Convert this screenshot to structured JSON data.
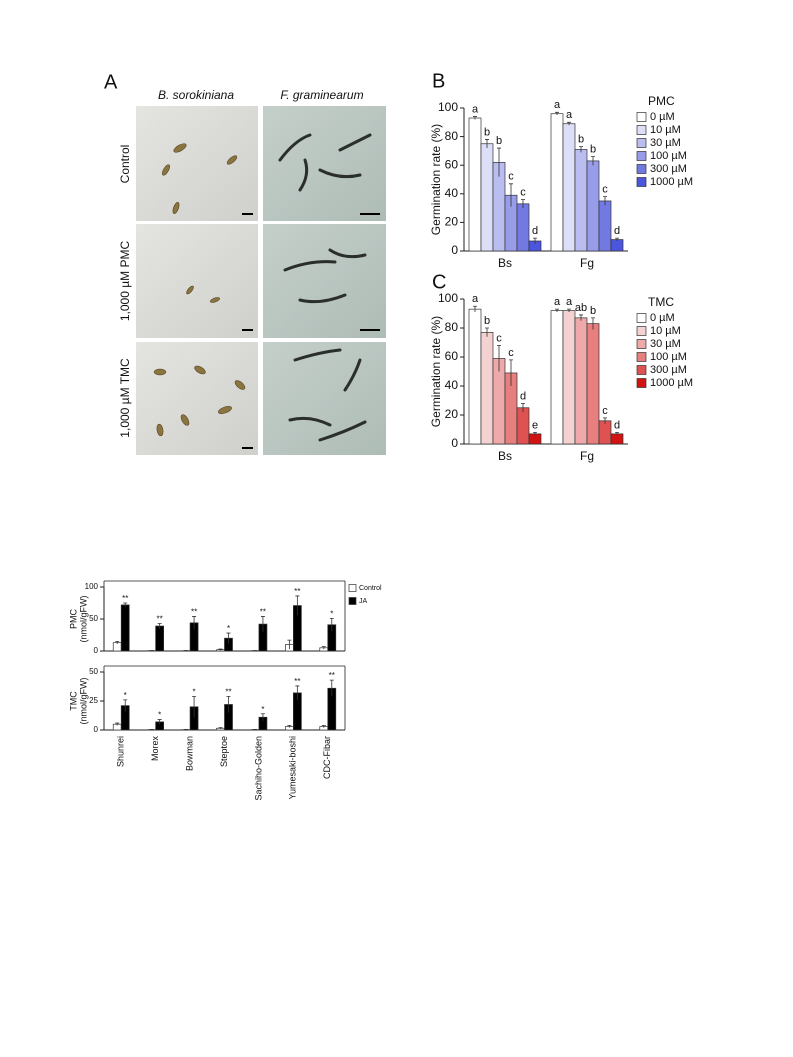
{
  "panel_a": {
    "label": "A",
    "columns": [
      "B. sorokiniana",
      "F. graminearum"
    ],
    "rows": [
      "Control",
      "1,000 µM PMC",
      "1,000 µM TMC"
    ]
  },
  "chart_data": [
    {
      "type": "bar",
      "label": "B",
      "ylabel": "Germination rate (%)",
      "legend_title": "PMC",
      "categories": [
        "Bs",
        "Fg"
      ],
      "ylim": [
        0,
        100
      ],
      "yticks": [
        0,
        20,
        40,
        60,
        80,
        100
      ],
      "series": [
        {
          "name": "0 µM",
          "color": "#ffffff",
          "values": [
            93,
            96
          ],
          "errors": [
            1,
            1
          ],
          "letters": [
            "a",
            "a"
          ]
        },
        {
          "name": "10 µM",
          "color": "#dcdff7",
          "values": [
            75,
            89
          ],
          "errors": [
            3,
            1
          ],
          "letters": [
            "b",
            "a"
          ]
        },
        {
          "name": "30 µM",
          "color": "#b9bdf0",
          "values": [
            62,
            71
          ],
          "errors": [
            10,
            2
          ],
          "letters": [
            "b",
            "b"
          ]
        },
        {
          "name": "100 µM",
          "color": "#979de9",
          "values": [
            39,
            63
          ],
          "errors": [
            8,
            3
          ],
          "letters": [
            "c",
            "b"
          ]
        },
        {
          "name": "300 µM",
          "color": "#7279e2",
          "values": [
            33,
            35
          ],
          "errors": [
            3,
            3
          ],
          "letters": [
            "c",
            "c"
          ]
        },
        {
          "name": "1000 µM",
          "color": "#4c55dd",
          "values": [
            7,
            8
          ],
          "errors": [
            2,
            1
          ],
          "letters": [
            "d",
            "d"
          ]
        }
      ]
    },
    {
      "type": "bar",
      "label": "C",
      "ylabel": "Germination rate (%)",
      "legend_title": "TMC",
      "categories": [
        "Bs",
        "Fg"
      ],
      "ylim": [
        0,
        100
      ],
      "yticks": [
        0,
        20,
        40,
        60,
        80,
        100
      ],
      "series": [
        {
          "name": "0 µM",
          "color": "#ffffff",
          "values": [
            93,
            92
          ],
          "errors": [
            2,
            1
          ],
          "letters": [
            "a",
            "a"
          ]
        },
        {
          "name": "10 µM",
          "color": "#f5d2d2",
          "values": [
            77,
            92
          ],
          "errors": [
            3,
            1
          ],
          "letters": [
            "b",
            "a"
          ]
        },
        {
          "name": "30 µM",
          "color": "#eeaaaa",
          "values": [
            59,
            87
          ],
          "errors": [
            9,
            2
          ],
          "letters": [
            "c",
            "ab"
          ]
        },
        {
          "name": "100 µM",
          "color": "#e77f7f",
          "values": [
            49,
            83
          ],
          "errors": [
            9,
            4
          ],
          "letters": [
            "c",
            "b"
          ]
        },
        {
          "name": "300 µM",
          "color": "#df5252",
          "values": [
            25,
            16
          ],
          "errors": [
            3,
            2
          ],
          "letters": [
            "d",
            "c"
          ]
        },
        {
          "name": "1000 µM",
          "color": "#d31212",
          "values": [
            7,
            7
          ],
          "errors": [
            1,
            1
          ],
          "letters": [
            "e",
            "d"
          ]
        }
      ]
    },
    {
      "type": "bar",
      "categories": [
        "Shunrei",
        "Morex",
        "Bowman",
        "Steptoe",
        "Sachiho-Golden",
        "Yumesaki-boshi",
        "CDC-Fibar"
      ],
      "series": [
        {
          "name": "Control",
          "color": "#ffffff"
        },
        {
          "name": "JA",
          "color": "#000000"
        }
      ],
      "panels": [
        {
          "ylabel": [
            "PMC",
            "(nmol/gFW)"
          ],
          "ylim": [
            0,
            100
          ],
          "yticks": [
            0,
            50,
            100
          ],
          "series": [
            {
              "values": [
                13,
                0.5,
                0.5,
                2,
                0.5,
                10,
                5
              ],
              "errors": [
                2,
                0.3,
                0.3,
                1,
                0.3,
                7,
                2
              ]
            },
            {
              "values": [
                72,
                39,
                44,
                20,
                42,
                71,
                41
              ],
              "errors": [
                3,
                4,
                10,
                8,
                12,
                15,
                10
              ],
              "letters": [
                "**",
                "**",
                "**",
                "*",
                "**",
                "**",
                "*"
              ]
            }
          ]
        },
        {
          "ylabel": [
            "TMC",
            "(nmol/gFW)"
          ],
          "ylim": [
            0,
            50
          ],
          "yticks": [
            0,
            25,
            50
          ],
          "series": [
            {
              "values": [
                5,
                0.3,
                0.3,
                1.5,
                0.3,
                3,
                3
              ],
              "errors": [
                1,
                0.2,
                0.2,
                0.5,
                0.2,
                1,
                1
              ]
            },
            {
              "values": [
                21,
                7,
                20,
                22,
                11,
                32,
                36
              ],
              "errors": [
                5,
                2,
                9,
                7,
                3,
                6,
                7
              ],
              "letters": [
                "*",
                "*",
                "*",
                "**",
                "*",
                "**",
                "**"
              ]
            }
          ]
        }
      ]
    }
  ]
}
